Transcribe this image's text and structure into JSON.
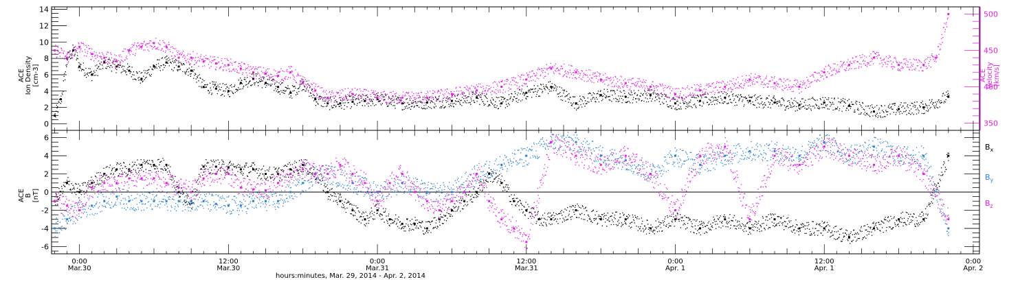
{
  "colors": {
    "black": "#000000",
    "magenta": "#e61ee6",
    "blue": "#2882dc"
  },
  "chart_data": [
    {
      "type": "scatter",
      "x_unit": "hours since 00:00 Mar. 30, 2014",
      "xlim": [
        -2.25,
        72.5
      ],
      "ylabel_left": [
        "ACE",
        "Ion Density",
        "[cm-3]"
      ],
      "ylabel_right": [
        "ACE",
        "Velocity",
        "[km/s]"
      ],
      "ylim_left": [
        -0.8,
        14.3
      ],
      "ylim_right": [
        340,
        510
      ],
      "yticks_left": [
        "0",
        "2",
        "4",
        "6",
        "8",
        "10",
        "12",
        "14"
      ],
      "yticks_right": [
        "350",
        "400",
        "450",
        "500"
      ],
      "series": [
        {
          "axis": "left",
          "color": "black",
          "x": [
            -2,
            -1.5,
            -1,
            -0.5,
            0,
            1,
            2,
            3,
            4,
            5,
            6,
            7,
            8,
            9,
            10,
            11,
            12,
            13,
            14,
            15,
            16,
            17,
            18,
            19,
            20,
            21,
            22,
            23,
            24,
            26,
            28,
            30,
            32,
            34,
            36,
            38,
            40,
            42,
            44,
            46,
            48,
            50,
            52,
            54,
            56,
            58,
            60,
            62,
            64,
            66,
            68,
            70
          ],
          "y": [
            1,
            3,
            8,
            9,
            7,
            6,
            7.5,
            7,
            6.5,
            5.5,
            7,
            7.5,
            7,
            6.5,
            4.5,
            4.3,
            4,
            5,
            5.5,
            5,
            4.5,
            3.8,
            5,
            3,
            2.5,
            2.5,
            2.7,
            2.8,
            3,
            2.5,
            2.6,
            2.8,
            3.2,
            2.5,
            3.8,
            4.5,
            2.5,
            3.5,
            3.3,
            3.5,
            2.5,
            2.8,
            3.2,
            2.8,
            2.6,
            2.3,
            2.6,
            2.2,
            1.5,
            1.8,
            2,
            3.3
          ]
        },
        {
          "axis": "right",
          "color": "magenta",
          "x": [
            -2,
            -1,
            0,
            1,
            2,
            3,
            4,
            5,
            6,
            7,
            8,
            9,
            10,
            11,
            12,
            13,
            14,
            15,
            16,
            17,
            18,
            19,
            20,
            22,
            24,
            26,
            28,
            30,
            32,
            34,
            36,
            38,
            40,
            42,
            44,
            46,
            48,
            50,
            52,
            54,
            56,
            58,
            60,
            62,
            64,
            66,
            68,
            69,
            70
          ],
          "y": [
            450,
            440,
            455,
            445,
            440,
            435,
            450,
            455,
            460,
            455,
            440,
            440,
            435,
            432,
            430,
            425,
            420,
            418,
            415,
            420,
            405,
            395,
            385,
            390,
            385,
            385,
            385,
            390,
            395,
            400,
            410,
            425,
            420,
            410,
            405,
            400,
            390,
            395,
            400,
            410,
            405,
            400,
            420,
            430,
            440,
            430,
            430,
            440,
            500
          ]
        }
      ]
    },
    {
      "type": "scatter",
      "x_unit": "hours since 00:00 Mar. 30, 2014",
      "xlim": [
        -2.25,
        72.5
      ],
      "ylabel_left": [
        "ACE",
        "B",
        "[nT]"
      ],
      "ylim": [
        -6.8,
        6.8
      ],
      "yticks": [
        "-6",
        "-4",
        "-2",
        "0",
        "2",
        "4",
        "6"
      ],
      "legend": [
        {
          "base": "B",
          "sub": "x",
          "color": "black"
        },
        {
          "base": "B",
          "sub": "y",
          "color": "blue"
        },
        {
          "base": "B",
          "sub": "z",
          "color": "magenta"
        }
      ],
      "series": [
        {
          "name": "Bx",
          "color": "black",
          "x": [
            -2,
            -1,
            0,
            1,
            2,
            3,
            4,
            5,
            6,
            7,
            8,
            9,
            10,
            11,
            12,
            13,
            14,
            15,
            16,
            17,
            18,
            19,
            20,
            21,
            22,
            23,
            24,
            25,
            26,
            27,
            28,
            29,
            30,
            31,
            32,
            33,
            34,
            35,
            36,
            37,
            38,
            40,
            42,
            44,
            46,
            48,
            50,
            52,
            54,
            56,
            58,
            60,
            62,
            64,
            66,
            68,
            70
          ],
          "y": [
            -1,
            1,
            0,
            1,
            2,
            2.5,
            2.5,
            3,
            3,
            3,
            0,
            -1,
            2.8,
            2.8,
            2.7,
            2.5,
            2.5,
            2,
            2,
            2.5,
            3,
            2,
            0,
            -1,
            -2,
            -3,
            -2,
            -3,
            -3.5,
            -3.5,
            -4,
            -3,
            -2,
            -1,
            0,
            2,
            1,
            -1,
            -2,
            -3,
            -3,
            -2,
            -3,
            -3,
            -4,
            -3,
            -4,
            -3,
            -4,
            -3,
            -4,
            -4,
            -5,
            -4,
            -3,
            -3,
            4
          ]
        },
        {
          "name": "By",
          "color": "blue",
          "x": [
            -2,
            -1,
            0,
            1,
            2,
            3,
            4,
            5,
            6,
            7,
            8,
            9,
            10,
            11,
            12,
            13,
            14,
            15,
            16,
            17,
            18,
            19,
            20,
            22,
            24,
            26,
            28,
            30,
            32,
            34,
            36,
            38,
            40,
            42,
            44,
            46,
            48,
            50,
            52,
            54,
            56,
            58,
            60,
            62,
            64,
            66,
            68,
            70
          ],
          "y": [
            -4,
            -3,
            -2,
            -1.5,
            -1,
            -0.5,
            -1,
            -1,
            -1,
            -1,
            -1,
            -1,
            -1,
            -1.3,
            -1.5,
            -1.5,
            -1,
            -1,
            -1,
            0,
            1,
            2,
            2,
            1,
            0,
            1,
            0,
            0,
            2,
            3,
            4,
            5.5,
            5.5,
            4,
            3.5,
            2,
            4,
            3,
            4,
            4.5,
            4.5,
            4,
            5.5,
            4,
            5,
            4,
            4,
            -4
          ]
        },
        {
          "name": "Bz",
          "color": "magenta",
          "x": [
            -2,
            -1,
            0,
            1,
            2,
            3,
            4,
            5,
            6,
            7,
            8,
            9,
            10,
            11,
            12,
            13,
            14,
            15,
            16,
            17,
            18,
            19,
            20,
            21,
            22,
            23,
            24,
            25,
            26,
            27,
            28,
            29,
            30,
            31,
            32,
            33,
            34,
            35,
            36,
            38,
            40,
            42,
            44,
            46,
            48,
            50,
            52,
            54,
            56,
            58,
            60,
            62,
            64,
            66,
            68,
            70
          ],
          "y": [
            -1,
            -1.5,
            -2,
            0.5,
            1,
            1,
            1.5,
            1.5,
            1.5,
            1,
            0.5,
            0,
            1.5,
            2,
            2,
            0.5,
            0.3,
            0.2,
            1,
            2,
            2.5,
            2,
            2,
            3,
            2,
            1,
            -1,
            1,
            2,
            0,
            -1,
            -2,
            -1,
            0,
            2,
            -1,
            -3,
            -4,
            -5.5,
            5.5,
            4,
            3,
            4,
            2,
            -2,
            4,
            5,
            -3,
            4,
            3,
            5,
            4,
            3,
            4,
            2,
            -3
          ]
        }
      ]
    }
  ],
  "x_axis": {
    "ticks": [
      {
        "hour": 0,
        "time": "0:00",
        "date": "Mar.30"
      },
      {
        "hour": 12,
        "time": "12:00",
        "date": "Mar.30"
      },
      {
        "hour": 24,
        "time": "0:00",
        "date": "Mar.31"
      },
      {
        "hour": 36,
        "time": "12:00",
        "date": "Mar.31"
      },
      {
        "hour": 48,
        "time": "0:00",
        "date": "Apr. 1"
      },
      {
        "hour": 60,
        "time": "12:00",
        "date": "Apr. 1"
      },
      {
        "hour": 72,
        "time": "0:00",
        "date": "Apr. 2"
      }
    ],
    "label": "hours:minutes, Mar. 29, 2014 - Apr.  2, 2014"
  }
}
